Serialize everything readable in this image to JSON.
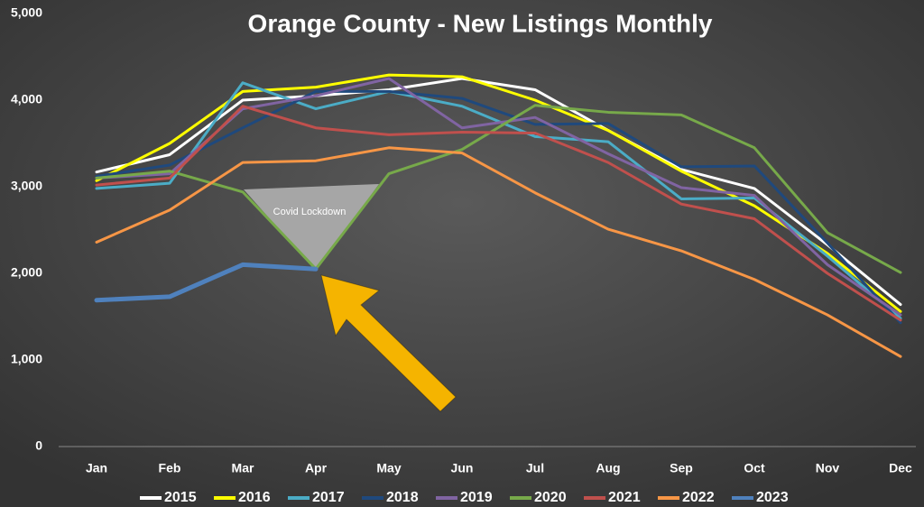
{
  "chart_data": {
    "type": "line",
    "title": "Orange County - New Listings Monthly",
    "annotation": "Covid Lockdown",
    "categories": [
      "Jan",
      "Feb",
      "Mar",
      "Apr",
      "May",
      "Jun",
      "Jul",
      "Aug",
      "Sep",
      "Oct",
      "Nov",
      "Dec"
    ],
    "ylim": [
      0,
      5000
    ],
    "yticks": [
      0,
      {
        "value": 1000,
        "label": "1,000"
      },
      {
        "value": 2000,
        "label": "2,000"
      },
      {
        "value": 3000,
        "label": "3,000"
      },
      {
        "value": 4000,
        "label": "4,000"
      },
      {
        "value": 5000,
        "label": "5,000"
      }
    ],
    "grid": false,
    "legend": "bottom",
    "series": [
      {
        "name": "2015",
        "color": "#ffffff",
        "values": [
          3170,
          3370,
          4000,
          4050,
          4120,
          4250,
          4120,
          3650,
          3200,
          2980,
          2330,
          1640
        ]
      },
      {
        "name": "2016",
        "color": "#ffff00",
        "values": [
          3070,
          3500,
          4100,
          4150,
          4290,
          4270,
          4000,
          3650,
          3180,
          2780,
          2230,
          1560
        ]
      },
      {
        "name": "2017",
        "color": "#4bacc6",
        "values": [
          2980,
          3040,
          4200,
          3900,
          4100,
          3930,
          3580,
          3520,
          2860,
          2870,
          2200,
          1480
        ]
      },
      {
        "name": "2018",
        "color": "#1f497d",
        "values": [
          3120,
          3250,
          3680,
          4100,
          4100,
          4020,
          3720,
          3730,
          3230,
          3240,
          2350,
          1430
        ]
      },
      {
        "name": "2019",
        "color": "#8064a2",
        "values": [
          3100,
          3150,
          3900,
          4050,
          4250,
          3680,
          3800,
          3380,
          2990,
          2900,
          2100,
          1520
        ]
      },
      {
        "name": "2020",
        "color": "#77a94a",
        "values": [
          3100,
          3180,
          2940,
          2050,
          3150,
          3430,
          3940,
          3860,
          3830,
          3450,
          2470,
          2010
        ]
      },
      {
        "name": "2021",
        "color": "#c0504d",
        "values": [
          3020,
          3100,
          3930,
          3680,
          3600,
          3630,
          3620,
          3280,
          2800,
          2630,
          2000,
          1460
        ]
      },
      {
        "name": "2022",
        "color": "#f79646",
        "values": [
          2360,
          2730,
          3280,
          3300,
          3450,
          3390,
          2930,
          2510,
          2260,
          1930,
          1520,
          1040
        ]
      },
      {
        "name": "2023",
        "color": "#4f81bd",
        "values": [
          1690,
          1730,
          2100,
          2050,
          null,
          null,
          null,
          null,
          null,
          null,
          null,
          null
        ]
      }
    ]
  }
}
